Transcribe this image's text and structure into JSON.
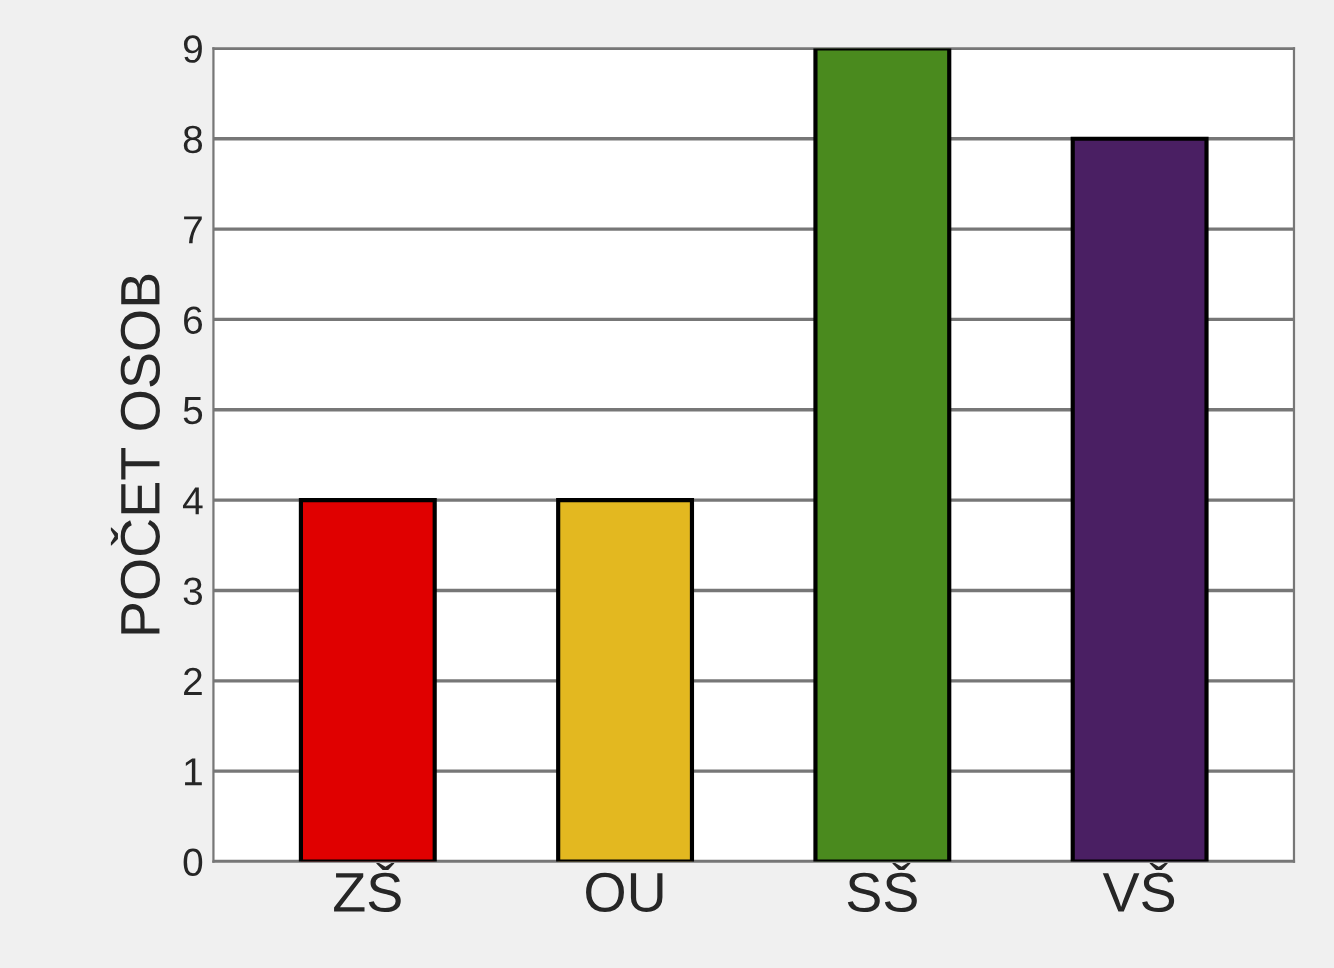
{
  "chart_data": {
    "type": "bar",
    "ylabel": "POČET OSOB",
    "categories": [
      "ZŠ",
      "OU",
      "SŠ",
      "VŠ"
    ],
    "values": [
      4,
      4,
      9,
      8
    ],
    "colors": [
      "#e00000",
      "#e3b820",
      "#4a8a1e",
      "#4a1f63"
    ],
    "ylim": [
      0,
      9
    ],
    "yticks": [
      0,
      1,
      2,
      3,
      4,
      5,
      6,
      7,
      8,
      9
    ],
    "grid": "y",
    "legend": false
  }
}
